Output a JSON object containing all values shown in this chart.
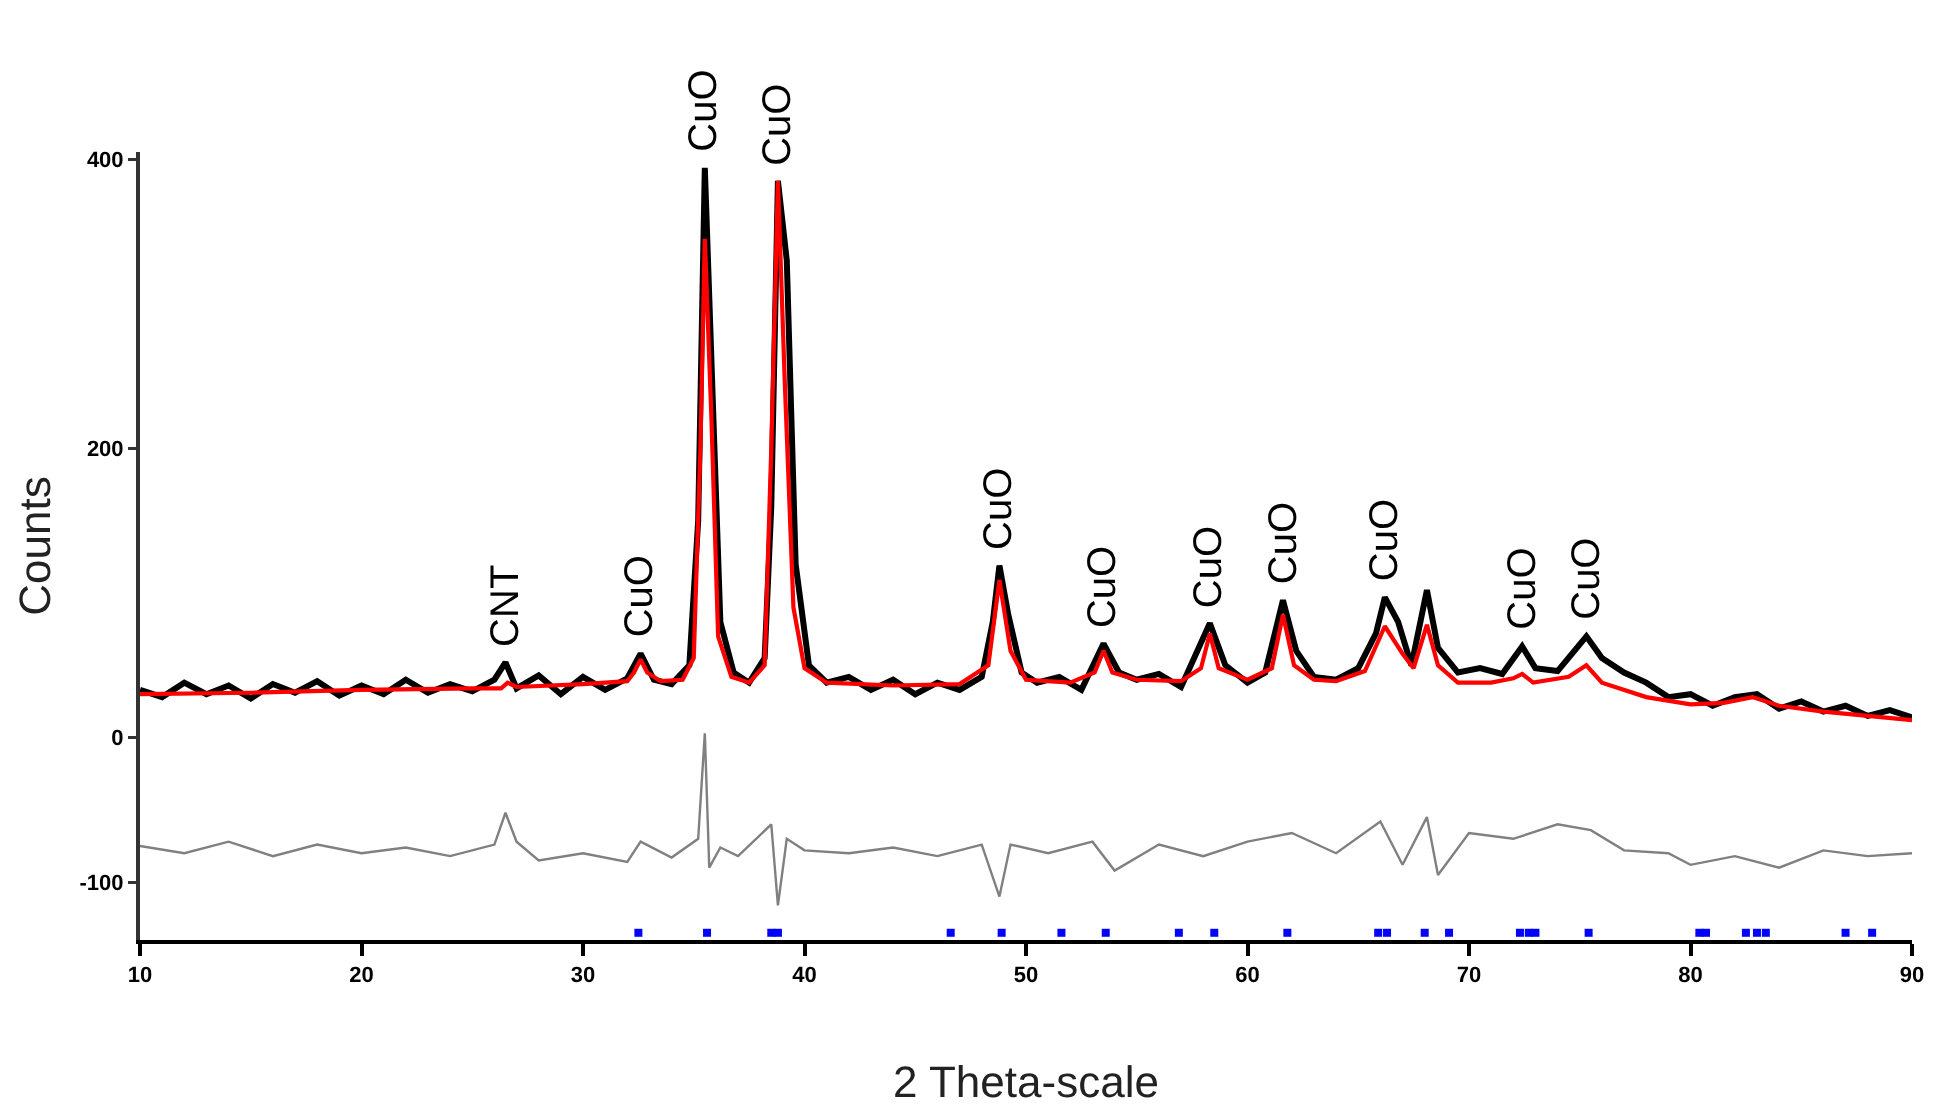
{
  "chart_data": {
    "type": "line",
    "xlabel": "2 Theta-scale",
    "ylabel": "Counts",
    "xlim": [
      10,
      90
    ],
    "ylim": [
      -140,
      405
    ],
    "xticks": [
      10,
      20,
      30,
      40,
      50,
      60,
      70,
      80,
      90
    ],
    "yticks": [
      -100,
      0,
      200,
      400
    ],
    "annotations": [
      {
        "text": "CNT",
        "x": 26.5,
        "y": 52
      },
      {
        "text": "CuO",
        "x": 32.6,
        "y": 58
      },
      {
        "text": "CuO",
        "x": 35.5,
        "y": 394
      },
      {
        "text": "CuO",
        "x": 38.8,
        "y": 385
      },
      {
        "text": "CuO",
        "x": 48.8,
        "y": 119
      },
      {
        "text": "CuO",
        "x": 53.5,
        "y": 65
      },
      {
        "text": "CuO",
        "x": 58.3,
        "y": 79
      },
      {
        "text": "CuO",
        "x": 61.6,
        "y": 95
      },
      {
        "text": "CuO",
        "x": 66.2,
        "y": 97
      },
      {
        "text": "CuO",
        "x": 72.4,
        "y": 63
      },
      {
        "text": "CuO",
        "x": 75.3,
        "y": 70
      }
    ],
    "series": [
      {
        "color": "#000000",
        "x": [
          10,
          11,
          12,
          13,
          14,
          15,
          16,
          17,
          18,
          19,
          20,
          21,
          22,
          23,
          24,
          25,
          26,
          26.5,
          27,
          28,
          29,
          30,
          31,
          32,
          32.6,
          33.2,
          34,
          34.8,
          35.2,
          35.5,
          35.8,
          36.2,
          36.8,
          37.5,
          38.2,
          38.5,
          38.8,
          39.2,
          39.6,
          40.2,
          41,
          42,
          43,
          44,
          45,
          46,
          47,
          48,
          48.5,
          48.8,
          49.2,
          49.8,
          50.5,
          51.5,
          52.5,
          53.5,
          54.2,
          55,
          56,
          57,
          58.3,
          59,
          60,
          60.8,
          61.6,
          62.2,
          63,
          64,
          65,
          65.8,
          66.2,
          66.8,
          67.4,
          68.1,
          68.6,
          69.5,
          70.5,
          71.5,
          72.4,
          73,
          74,
          75.3,
          76,
          77,
          78,
          79,
          80,
          81,
          82,
          83,
          84,
          85,
          86,
          87,
          88,
          89,
          90
        ],
        "values": [
          33,
          28,
          38,
          30,
          36,
          27,
          37,
          31,
          39,
          29,
          36,
          30,
          40,
          31,
          37,
          32,
          40,
          52,
          34,
          43,
          30,
          42,
          33,
          41,
          58,
          40,
          37,
          50,
          150,
          394,
          260,
          80,
          45,
          38,
          55,
          160,
          385,
          330,
          120,
          50,
          38,
          42,
          33,
          40,
          30,
          38,
          33,
          42,
          80,
          119,
          85,
          45,
          38,
          42,
          33,
          65,
          45,
          40,
          44,
          35,
          79,
          50,
          38,
          45,
          95,
          60,
          42,
          40,
          48,
          72,
          97,
          80,
          50,
          102,
          62,
          45,
          48,
          44,
          63,
          48,
          46,
          70,
          55,
          45,
          38,
          28,
          30,
          22,
          28,
          30,
          20,
          25,
          18,
          22,
          15,
          19,
          14
        ]
      },
      {
        "color": "#ff0000",
        "x": [
          10,
          15,
          20,
          25,
          26.3,
          26.6,
          27,
          30,
          32,
          32.3,
          32.6,
          32.9,
          33.5,
          34.5,
          35,
          35.3,
          35.5,
          35.8,
          36.1,
          36.7,
          37.5,
          38.2,
          38.5,
          38.8,
          39.1,
          39.5,
          40,
          41,
          44,
          47,
          48.3,
          48.8,
          49.3,
          50,
          52,
          53.1,
          53.5,
          53.9,
          55,
          57,
          57.9,
          58.3,
          58.7,
          60,
          61.1,
          61.6,
          62.1,
          63,
          64,
          65.3,
          66.2,
          67,
          67.5,
          68.1,
          68.6,
          69.5,
          71,
          72,
          72.4,
          72.9,
          74.5,
          75.3,
          76,
          78,
          80,
          81.5,
          82.8,
          84,
          86,
          88,
          90
        ],
        "values": [
          30,
          31,
          33,
          34,
          34,
          38,
          35,
          37,
          39,
          45,
          54,
          45,
          39,
          40,
          55,
          200,
          345,
          220,
          70,
          42,
          38,
          50,
          200,
          385,
          250,
          90,
          48,
          38,
          36,
          37,
          50,
          109,
          60,
          40,
          38,
          45,
          60,
          45,
          40,
          39,
          48,
          72,
          48,
          40,
          48,
          85,
          50,
          40,
          39,
          46,
          77,
          58,
          48,
          78,
          50,
          38,
          38,
          41,
          44,
          38,
          42,
          50,
          38,
          28,
          23,
          24,
          28,
          22,
          18,
          15,
          12
        ]
      },
      {
        "color": "#808080",
        "x": [
          10,
          12,
          14,
          16,
          18,
          20,
          22,
          24,
          26,
          26.5,
          27,
          28,
          30,
          32,
          32.6,
          34,
          35.2,
          35.5,
          35.7,
          36.2,
          37,
          38.5,
          38.8,
          39.2,
          40,
          42,
          44,
          46,
          48,
          48.8,
          49.3,
          51,
          53,
          54,
          56,
          58,
          60,
          62,
          64,
          66,
          67,
          68.1,
          68.6,
          70,
          72,
          74,
          75.5,
          77,
          79,
          80,
          82,
          84,
          86,
          88,
          90
        ],
        "values": [
          -75,
          -80,
          -72,
          -82,
          -74,
          -80,
          -76,
          -82,
          -74,
          -52,
          -72,
          -85,
          -80,
          -86,
          -72,
          -83,
          -70,
          3,
          -90,
          -76,
          -82,
          -60,
          -116,
          -70,
          -78,
          -80,
          -76,
          -82,
          -74,
          -110,
          -74,
          -80,
          -72,
          -92,
          -74,
          -82,
          -72,
          -66,
          -80,
          -58,
          -88,
          -55,
          -95,
          -66,
          -70,
          -60,
          -64,
          -78,
          -80,
          -88,
          -82,
          -90,
          -78,
          -82,
          -80
        ]
      },
      {
        "type": "scatter",
        "color": "#0000ff",
        "marker": "square",
        "x": [
          32.5,
          35.6,
          38.5,
          38.8,
          46.6,
          48.9,
          51.6,
          53.6,
          56.9,
          58.5,
          61.8,
          65.9,
          66.3,
          68.0,
          69.1,
          72.3,
          72.7,
          73.0,
          75.4,
          80.4,
          80.7,
          82.5,
          83.0,
          83.4,
          87.0,
          88.2
        ],
        "values": [
          -135,
          -135,
          -135,
          -135,
          -135,
          -135,
          -135,
          -135,
          -135,
          -135,
          -135,
          -135,
          -135,
          -135,
          -135,
          -135,
          -135,
          -135,
          -135,
          -135,
          -135,
          -135,
          -135,
          -135,
          -135,
          -135
        ]
      }
    ]
  }
}
